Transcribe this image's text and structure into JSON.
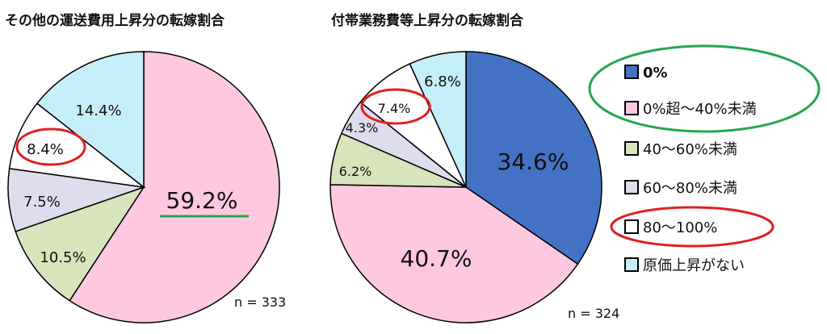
{
  "chart_data": [
    {
      "type": "pie",
      "title": "その他の運送費用上昇分の転嫁割合",
      "n_label": "n = 333",
      "categories": [
        "0%",
        "0%超～40%未満",
        "40～60%未満",
        "60～80%未満",
        "80～100%",
        "原価上昇がない"
      ],
      "values": [
        0,
        59.2,
        10.5,
        7.5,
        8.4,
        14.4
      ],
      "labels": [
        "",
        "59.2%",
        "10.5%",
        "7.5%",
        "8.4%",
        "14.4%"
      ],
      "highlighted": [
        "80～100%"
      ],
      "underlined": [
        "0%超～40%未満"
      ]
    },
    {
      "type": "pie",
      "title": "付帯業務費等上昇分の転嫁割合",
      "n_label": "n = 324",
      "categories": [
        "0%",
        "0%超～40%未満",
        "40～60%未満",
        "60～80%未満",
        "80～100%",
        "原価上昇がない"
      ],
      "values": [
        34.6,
        40.7,
        6.2,
        4.3,
        7.4,
        6.8
      ],
      "labels": [
        "34.6%",
        "40.7%",
        "6.2%",
        "4.3%",
        "7.4%",
        "6.8%"
      ],
      "highlighted": [
        "80～100%"
      ]
    }
  ],
  "legend": {
    "items": [
      {
        "label": "0%",
        "color": "#4472C4"
      },
      {
        "label": "0%超～40%未満",
        "color": "#FFC8E1"
      },
      {
        "label": "40～60%未満",
        "color": "#D8E4BC"
      },
      {
        "label": "60～80%未満",
        "color": "#DDDDEE"
      },
      {
        "label": "80～100%",
        "color": "#FFFFFF"
      },
      {
        "label": "原価上昇がない",
        "color": "#C6EEF8"
      }
    ],
    "circled_green": [
      "0%",
      "0%超～40%未満"
    ],
    "circled_red": [
      "80～100%"
    ]
  },
  "colors": {
    "highlight_red": "#E02020",
    "highlight_green": "#22A84A",
    "edge": "#000000"
  }
}
